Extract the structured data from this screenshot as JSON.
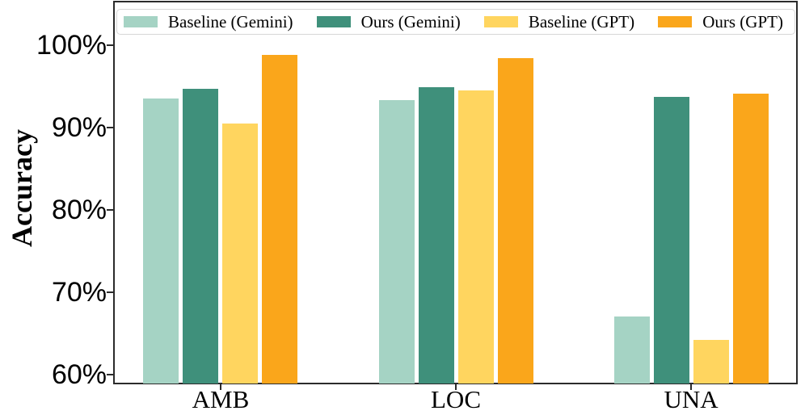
{
  "chart_data": {
    "type": "bar",
    "title": "",
    "xlabel": "",
    "ylabel": "Accuracy",
    "categories": [
      "AMB",
      "LOC",
      "UNA"
    ],
    "series": [
      {
        "name": "Baseline (Gemini)",
        "color": "#A5D3C4",
        "values": [
          93.5,
          93.3,
          67.0
        ]
      },
      {
        "name": "Ours (Gemini)",
        "color": "#3F907B",
        "values": [
          94.7,
          94.9,
          93.7
        ]
      },
      {
        "name": "Baseline (GPT)",
        "color": "#FFD55F",
        "values": [
          90.5,
          94.5,
          64.2
        ]
      },
      {
        "name": "Ours (GPT)",
        "color": "#FAA61B",
        "values": [
          98.8,
          98.4,
          94.1
        ]
      }
    ],
    "y_ticks": [
      60,
      70,
      80,
      90,
      100
    ],
    "y_tick_suffix": "%",
    "ylim": [
      58.9,
      105.2
    ],
    "xlim": [
      -0.45,
      2.45
    ],
    "grid": false,
    "legend_position": "top-inside-horizontal",
    "spine_color": "#2b2b2b",
    "legend_border_color": "#d7d7d7"
  }
}
